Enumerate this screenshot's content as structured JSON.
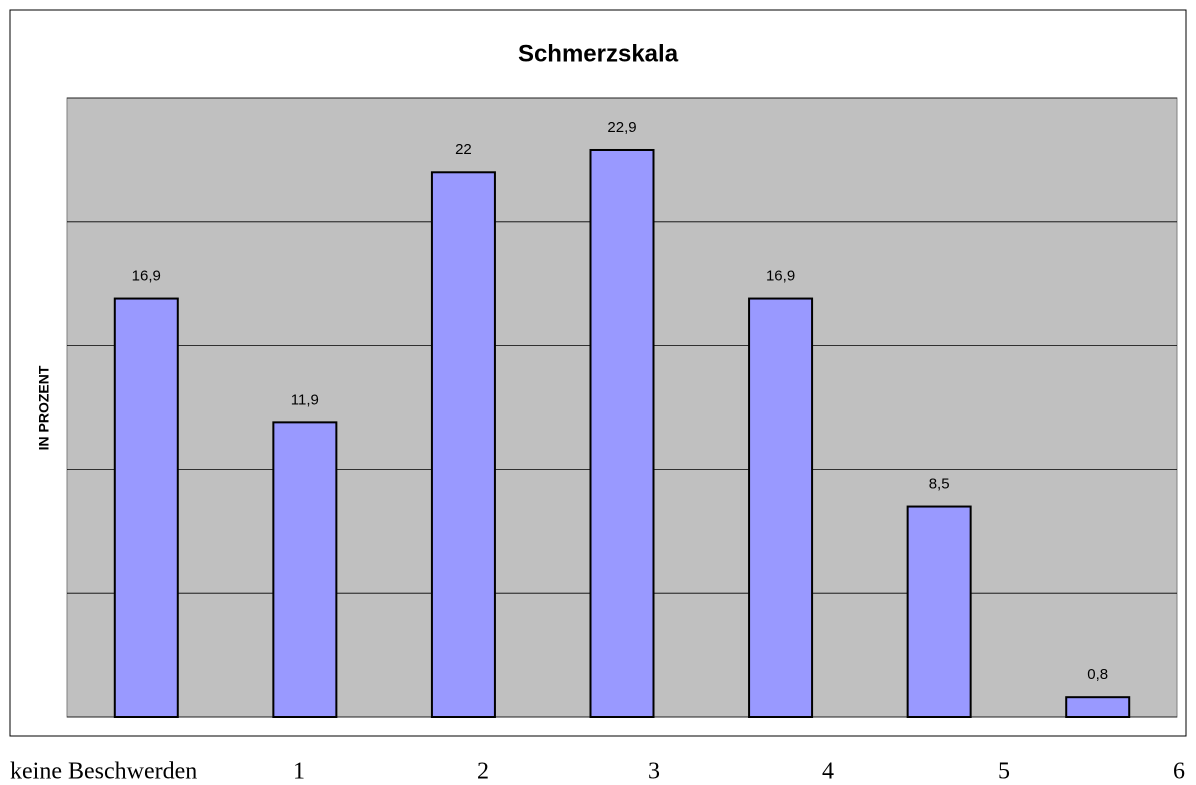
{
  "chart_data": {
    "type": "bar",
    "title": "Schmerzskala",
    "y_label": "IN PROZENT",
    "categories": [
      "keine Beschwerden",
      "1",
      "2",
      "3",
      "4",
      "5",
      "6"
    ],
    "values": [
      16.9,
      11.9,
      22,
      22.9,
      16.9,
      8.5,
      0.8
    ],
    "value_labels": [
      "16,9",
      "11,9",
      "22",
      "22,9",
      "16,9",
      "8,5",
      "0,8"
    ],
    "color": "#9999ff",
    "ylim": [
      0,
      25
    ],
    "yticks": [
      0,
      5,
      10,
      15,
      20,
      25
    ],
    "grid": true
  }
}
